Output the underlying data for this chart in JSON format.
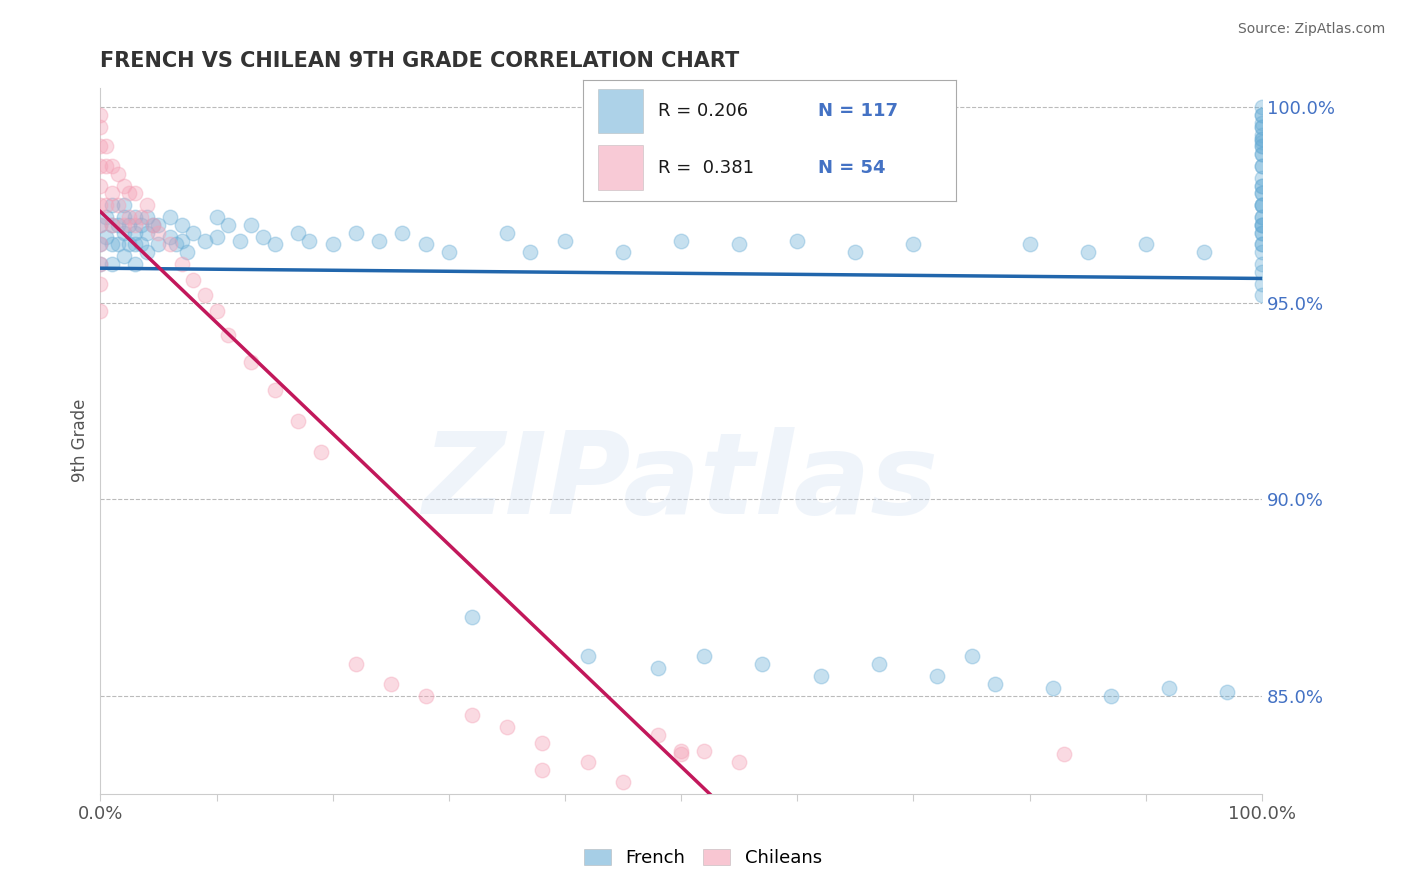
{
  "title": "FRENCH VS CHILEAN 9TH GRADE CORRELATION CHART",
  "source": "Source: ZipAtlas.com",
  "ylabel": "9th Grade",
  "xtick_labels": [
    "0.0%",
    "100.0%"
  ],
  "xlim": [
    0.0,
    1.0
  ],
  "ylim": [
    0.825,
    1.005
  ],
  "yticks": [
    0.85,
    0.9,
    0.95,
    1.0
  ],
  "ytick_labels": [
    "85.0%",
    "90.0%",
    "95.0%",
    "100.0%"
  ],
  "french_color": "#6baed6",
  "chilean_color": "#f4a0b5",
  "french_line_color": "#2166ac",
  "chilean_line_color": "#c2185b",
  "french_R": "0.206",
  "french_N": "117",
  "chilean_R": "0.381",
  "chilean_N": "54",
  "french_x": [
    0.0,
    0.0,
    0.0,
    0.005,
    0.005,
    0.01,
    0.01,
    0.01,
    0.01,
    0.015,
    0.015,
    0.02,
    0.02,
    0.02,
    0.02,
    0.025,
    0.025,
    0.03,
    0.03,
    0.03,
    0.03,
    0.035,
    0.035,
    0.04,
    0.04,
    0.04,
    0.045,
    0.05,
    0.05,
    0.06,
    0.06,
    0.065,
    0.07,
    0.07,
    0.075,
    0.08,
    0.09,
    0.1,
    0.1,
    0.11,
    0.12,
    0.13,
    0.14,
    0.15,
    0.17,
    0.18,
    0.2,
    0.22,
    0.24,
    0.26,
    0.28,
    0.3,
    0.32,
    0.35,
    0.37,
    0.4,
    0.42,
    0.45,
    0.48,
    0.5,
    0.52,
    0.55,
    0.57,
    0.6,
    0.62,
    0.65,
    0.67,
    0.7,
    0.72,
    0.75,
    0.77,
    0.8,
    0.82,
    0.85,
    0.87,
    0.9,
    0.92,
    0.95,
    0.97,
    1.0,
    1.0,
    1.0,
    1.0,
    1.0,
    1.0,
    1.0,
    1.0,
    1.0,
    1.0,
    1.0,
    1.0,
    1.0,
    1.0,
    1.0,
    1.0,
    1.0,
    1.0,
    1.0,
    1.0,
    1.0,
    1.0,
    1.0,
    1.0,
    1.0,
    1.0,
    1.0,
    1.0,
    1.0,
    1.0,
    1.0,
    1.0,
    1.0,
    1.0,
    1.0,
    1.0,
    1.0,
    1.0
  ],
  "french_y": [
    0.97,
    0.965,
    0.96,
    0.972,
    0.967,
    0.975,
    0.97,
    0.965,
    0.96,
    0.97,
    0.965,
    0.975,
    0.972,
    0.968,
    0.962,
    0.97,
    0.965,
    0.972,
    0.968,
    0.965,
    0.96,
    0.97,
    0.965,
    0.972,
    0.968,
    0.963,
    0.97,
    0.97,
    0.965,
    0.972,
    0.967,
    0.965,
    0.97,
    0.966,
    0.963,
    0.968,
    0.966,
    0.972,
    0.967,
    0.97,
    0.966,
    0.97,
    0.967,
    0.965,
    0.968,
    0.966,
    0.965,
    0.968,
    0.966,
    0.968,
    0.965,
    0.963,
    0.87,
    0.968,
    0.963,
    0.966,
    0.86,
    0.963,
    0.857,
    0.966,
    0.86,
    0.965,
    0.858,
    0.966,
    0.855,
    0.963,
    0.858,
    0.965,
    0.855,
    0.86,
    0.853,
    0.965,
    0.852,
    0.963,
    0.85,
    0.965,
    0.852,
    0.963,
    0.851,
    1.0,
    0.998,
    0.995,
    0.992,
    0.99,
    0.988,
    0.985,
    0.982,
    0.98,
    0.978,
    0.975,
    0.972,
    0.97,
    0.968,
    0.965,
    0.963,
    0.96,
    0.958,
    0.955,
    0.952,
    0.988,
    0.985,
    0.992,
    0.99,
    0.978,
    0.975,
    0.97,
    0.998,
    0.996,
    0.995,
    0.968,
    0.975,
    0.972,
    0.97,
    0.98,
    0.965,
    0.993,
    0.991
  ],
  "chilean_x": [
    0.0,
    0.0,
    0.0,
    0.0,
    0.0,
    0.0,
    0.0,
    0.0,
    0.0,
    0.0,
    0.0,
    0.005,
    0.005,
    0.005,
    0.01,
    0.01,
    0.01,
    0.015,
    0.015,
    0.02,
    0.02,
    0.025,
    0.025,
    0.03,
    0.03,
    0.035,
    0.04,
    0.045,
    0.05,
    0.06,
    0.07,
    0.08,
    0.09,
    0.1,
    0.11,
    0.13,
    0.15,
    0.17,
    0.19,
    0.22,
    0.25,
    0.28,
    0.32,
    0.35,
    0.38,
    0.42,
    0.45,
    0.48,
    0.5,
    0.52,
    0.55,
    0.38,
    0.83,
    0.5
  ],
  "chilean_y": [
    0.998,
    0.995,
    0.99,
    0.985,
    0.98,
    0.975,
    0.97,
    0.965,
    0.96,
    0.955,
    0.948,
    0.99,
    0.985,
    0.975,
    0.985,
    0.978,
    0.97,
    0.983,
    0.975,
    0.98,
    0.97,
    0.978,
    0.972,
    0.978,
    0.97,
    0.972,
    0.975,
    0.97,
    0.968,
    0.965,
    0.96,
    0.956,
    0.952,
    0.948,
    0.942,
    0.935,
    0.928,
    0.92,
    0.912,
    0.858,
    0.853,
    0.85,
    0.845,
    0.842,
    0.838,
    0.833,
    0.828,
    0.84,
    0.835,
    0.836,
    0.833,
    0.831,
    0.835,
    0.836
  ],
  "background_color": "#ffffff",
  "grid_color": "#bbbbbb",
  "tick_color_blue": "#4472c4",
  "title_color": "#333333",
  "source_color": "#666666",
  "watermark": "ZIPatlas",
  "scatter_size": 110,
  "scatter_alpha": 0.38
}
